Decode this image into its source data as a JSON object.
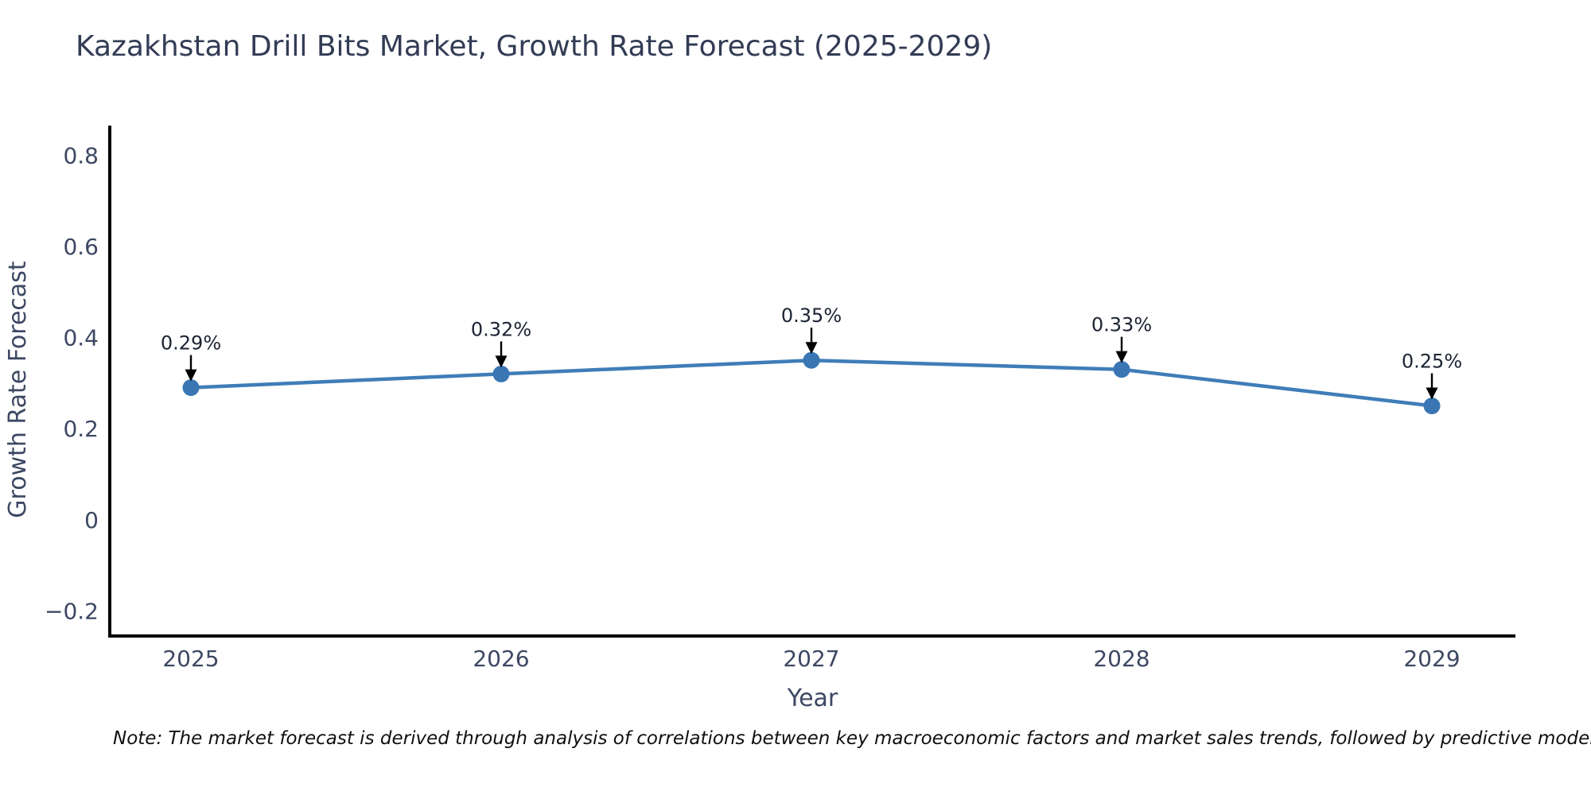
{
  "title": "Kazakhstan Drill Bits Market, Growth Rate Forecast (2025-2029)",
  "note": "Note: The market forecast is derived through analysis of correlations between key macroeconomic factors and market sales trends, followed by predictive modeling to project future sales",
  "chart_data": {
    "type": "line",
    "title": "Kazakhstan Drill Bits Market, Growth Rate Forecast (2025-2029)",
    "xlabel": "Year",
    "ylabel": "Growth Rate Forecast",
    "categories": [
      "2025",
      "2026",
      "2027",
      "2028",
      "2029"
    ],
    "values": [
      0.29,
      0.32,
      0.35,
      0.33,
      0.25
    ],
    "point_labels": [
      "0.29%",
      "0.32%",
      "0.35%",
      "0.33%",
      "0.25%"
    ],
    "ytick_values": [
      -0.2,
      0,
      0.2,
      0.4,
      0.6,
      0.8
    ],
    "ytick_labels": [
      "−0.2",
      "0",
      "0.2",
      "0.4",
      "0.6",
      "0.8"
    ],
    "ylim": [
      -0.255,
      0.865
    ],
    "grid": false,
    "legend": "none",
    "annotation_style": "value label with downward black arrow to marker",
    "colors": {
      "line": "#3f7db8",
      "marker": "#3a76b4",
      "axis": "#000000",
      "tick_text": "#3d4863",
      "axis_label_text": "#3d4863",
      "title_text": "#333c55",
      "annotation_text": "#1c2333",
      "arrow": "#000000",
      "background": "#ffffff"
    }
  }
}
